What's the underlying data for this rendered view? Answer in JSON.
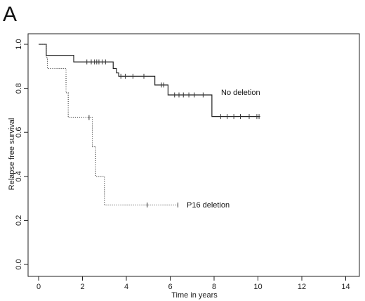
{
  "panel_label": "A",
  "chart_data": {
    "type": "line",
    "step": true,
    "xlabel": "Time in years",
    "ylabel": "Relapse free survival",
    "xlim": [
      0,
      14
    ],
    "ylim": [
      0.0,
      1.0
    ],
    "xticks": [
      "0",
      "2",
      "4",
      "6",
      "8",
      "10",
      "12",
      "14"
    ],
    "yticks": [
      "0.0",
      "0.2",
      "0.4",
      "0.6",
      "0.8",
      "1.0"
    ],
    "grid": false,
    "legend": "none",
    "series": [
      {
        "name": "No deletion",
        "line_style": "solid",
        "x": [
          0.0,
          0.35,
          0.35,
          1.6,
          1.6,
          3.4,
          3.4,
          3.55,
          3.55,
          3.65,
          3.65,
          5.3,
          5.3,
          5.9,
          5.9,
          7.9,
          7.9,
          10.1
        ],
        "y": [
          1.0,
          1.0,
          0.95,
          0.95,
          0.92,
          0.92,
          0.89,
          0.89,
          0.87,
          0.87,
          0.855,
          0.855,
          0.815,
          0.815,
          0.77,
          0.77,
          0.672,
          0.672
        ],
        "censored": [
          {
            "x": 2.2,
            "y": 0.92
          },
          {
            "x": 2.4,
            "y": 0.92
          },
          {
            "x": 2.55,
            "y": 0.92
          },
          {
            "x": 2.65,
            "y": 0.92
          },
          {
            "x": 2.75,
            "y": 0.92
          },
          {
            "x": 2.9,
            "y": 0.92
          },
          {
            "x": 3.05,
            "y": 0.92
          },
          {
            "x": 3.75,
            "y": 0.855
          },
          {
            "x": 3.95,
            "y": 0.855
          },
          {
            "x": 4.3,
            "y": 0.855
          },
          {
            "x": 4.8,
            "y": 0.855
          },
          {
            "x": 5.6,
            "y": 0.815
          },
          {
            "x": 5.7,
            "y": 0.815
          },
          {
            "x": 6.2,
            "y": 0.77
          },
          {
            "x": 6.4,
            "y": 0.77
          },
          {
            "x": 6.6,
            "y": 0.77
          },
          {
            "x": 6.85,
            "y": 0.77
          },
          {
            "x": 7.1,
            "y": 0.77
          },
          {
            "x": 7.5,
            "y": 0.77
          },
          {
            "x": 8.3,
            "y": 0.672
          },
          {
            "x": 8.6,
            "y": 0.672
          },
          {
            "x": 8.9,
            "y": 0.672
          },
          {
            "x": 9.2,
            "y": 0.672
          },
          {
            "x": 9.6,
            "y": 0.672
          },
          {
            "x": 9.95,
            "y": 0.672
          },
          {
            "x": 10.05,
            "y": 0.672
          }
        ]
      },
      {
        "name": "P16 deletion",
        "line_style": "dotted",
        "x": [
          0.0,
          0.35,
          0.35,
          0.4,
          0.4,
          1.25,
          1.25,
          1.35,
          1.35,
          2.45,
          2.45,
          2.6,
          2.6,
          3.0,
          3.0,
          6.35
        ],
        "y": [
          1.0,
          1.0,
          0.94,
          0.94,
          0.89,
          0.89,
          0.78,
          0.78,
          0.667,
          0.667,
          0.535,
          0.535,
          0.4,
          0.4,
          0.27,
          0.27
        ],
        "censored": [
          {
            "x": 2.3,
            "y": 0.667
          },
          {
            "x": 4.95,
            "y": 0.27
          },
          {
            "x": 6.35,
            "y": 0.27
          }
        ]
      }
    ]
  }
}
